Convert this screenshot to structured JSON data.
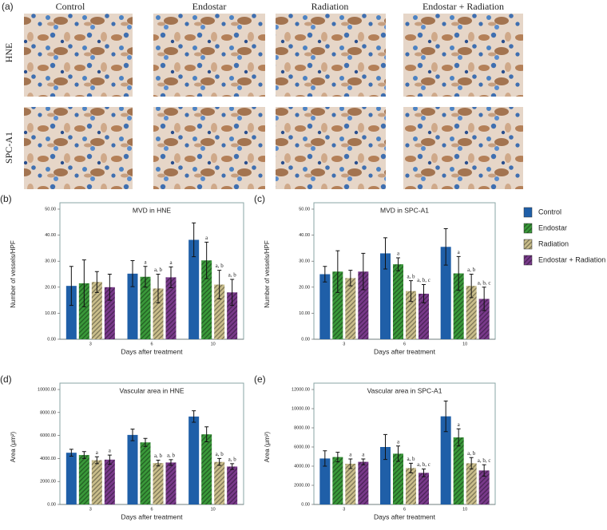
{
  "figure": {
    "panel_a": {
      "label": "(a)",
      "columns": [
        "Control",
        "Endostar",
        "Radiation",
        "Endostar + Radiation"
      ],
      "rows": [
        "HNE",
        "SPC-A1"
      ]
    }
  },
  "chart_data": [
    {
      "type": "bar",
      "panel": "(b)",
      "title": "MVD in HNE",
      "x_label": "Days after treatment",
      "y_label": "Number of vessels/HPF",
      "categories": [
        "3",
        "6",
        "10"
      ],
      "ylim": [
        0,
        50
      ],
      "yticks": [
        {
          "value": 0,
          "label": "0.00"
        },
        {
          "value": 10,
          "label": "10.00"
        },
        {
          "value": 20,
          "label": "20.00"
        },
        {
          "value": 30,
          "label": "30.00"
        },
        {
          "value": 40,
          "label": "40.00"
        },
        {
          "value": 50,
          "label": "50.00"
        }
      ],
      "series": [
        {
          "name": "Control",
          "color": "#1f5fa8",
          "hatch": false,
          "values": [
            20.5,
            25.2,
            38.2
          ],
          "errors": [
            7.5,
            5,
            6.5
          ],
          "annotations": [
            null,
            null,
            null
          ]
        },
        {
          "name": "Endostar",
          "color": "#3a9a3a",
          "hatch": true,
          "values": [
            21.5,
            24,
            30.3
          ],
          "errors": [
            9,
            4,
            7
          ],
          "annotations": [
            null,
            "a",
            "a"
          ]
        },
        {
          "name": "Radiation",
          "color": "#cbbf8c",
          "hatch": true,
          "values": [
            22,
            19.5,
            21
          ],
          "errors": [
            4,
            5.5,
            5.5
          ],
          "annotations": [
            null,
            "a, b",
            "a, b"
          ]
        },
        {
          "name": "Endostar + Radiation",
          "color": "#7a3a8c",
          "hatch": true,
          "values": [
            20,
            23.8,
            18
          ],
          "errors": [
            5,
            4,
            5
          ],
          "annotations": [
            null,
            "a",
            "a, b"
          ]
        }
      ]
    },
    {
      "type": "bar",
      "panel": "(c)",
      "title": "MVD in SPC-A1",
      "x_label": "Days after treatment",
      "y_label": "Number of vessels/HPF",
      "categories": [
        "3",
        "6",
        "10"
      ],
      "ylim": [
        0,
        50
      ],
      "yticks": [
        {
          "value": 0,
          "label": "0.00"
        },
        {
          "value": 10,
          "label": "10.00"
        },
        {
          "value": 20,
          "label": "20.00"
        },
        {
          "value": 30,
          "label": "30.00"
        },
        {
          "value": 40,
          "label": "40.00"
        },
        {
          "value": 50,
          "label": "50.00"
        }
      ],
      "series": [
        {
          "name": "Control",
          "color": "#1f5fa8",
          "hatch": false,
          "values": [
            25,
            33,
            35.5
          ],
          "errors": [
            3,
            6,
            7
          ],
          "annotations": [
            null,
            null,
            null
          ]
        },
        {
          "name": "Endostar",
          "color": "#3a9a3a",
          "hatch": true,
          "values": [
            26,
            28.8,
            25.3
          ],
          "errors": [
            8,
            2.5,
            6.5
          ],
          "annotations": [
            null,
            "a",
            "a"
          ]
        },
        {
          "name": "Radiation",
          "color": "#cbbf8c",
          "hatch": true,
          "values": [
            23.5,
            18.5,
            20.5
          ],
          "errors": [
            3,
            4,
            4.5
          ],
          "annotations": [
            null,
            "a, b",
            "a, b"
          ]
        },
        {
          "name": "Endostar + Radiation",
          "color": "#7a3a8c",
          "hatch": true,
          "values": [
            26,
            17.5,
            15.5
          ],
          "errors": [
            7,
            3.5,
            4.5
          ],
          "annotations": [
            null,
            "a, b, c",
            "a, b, c"
          ]
        }
      ]
    },
    {
      "type": "bar",
      "panel": "(d)",
      "title": "Vascular area in HNE",
      "x_label": "Days after treatment",
      "y_label": "Area (μm²)",
      "categories": [
        "3",
        "6",
        "10"
      ],
      "ylim": [
        0,
        10000
      ],
      "yticks": [
        {
          "value": 0,
          "label": "0.00"
        },
        {
          "value": 2000,
          "label": "2000.00"
        },
        {
          "value": 4000,
          "label": "4000.00"
        },
        {
          "value": 6000,
          "label": "6000.00"
        },
        {
          "value": 8000,
          "label": "8000.00"
        },
        {
          "value": 10000,
          "label": "10000.00"
        }
      ],
      "series": [
        {
          "name": "Control",
          "color": "#1f5fa8",
          "hatch": false,
          "values": [
            4500,
            6050,
            7650
          ],
          "errors": [
            300,
            500,
            500
          ],
          "annotations": [
            null,
            null,
            null
          ]
        },
        {
          "name": "Endostar",
          "color": "#3a9a3a",
          "hatch": true,
          "values": [
            4300,
            5400,
            6100
          ],
          "errors": [
            300,
            350,
            650
          ],
          "annotations": [
            null,
            null,
            null
          ]
        },
        {
          "name": "Radiation",
          "color": "#cbbf8c",
          "hatch": true,
          "values": [
            3850,
            3600,
            3700
          ],
          "errors": [
            300,
            250,
            300
          ],
          "annotations": [
            "a",
            "a, b",
            "a, b"
          ]
        },
        {
          "name": "Endostar + Radiation",
          "color": "#7a3a8c",
          "hatch": true,
          "values": [
            3900,
            3650,
            3300
          ],
          "errors": [
            400,
            250,
            250
          ],
          "annotations": [
            "a",
            "a, b",
            "a, b"
          ]
        }
      ]
    },
    {
      "type": "bar",
      "panel": "(e)",
      "title": "Vascular area in SPC-A1",
      "x_label": "Days after treatment",
      "y_label": "Area (μm²)",
      "categories": [
        "3",
        "6",
        "10"
      ],
      "ylim": [
        0,
        12000
      ],
      "yticks": [
        {
          "value": 0,
          "label": "0.00"
        },
        {
          "value": 2000,
          "label": "2000.00"
        },
        {
          "value": 4000,
          "label": "4000.00"
        },
        {
          "value": 6000,
          "label": "6000.00"
        },
        {
          "value": 8000,
          "label": "8000.00"
        },
        {
          "value": 10000,
          "label": "10000.00"
        },
        {
          "value": 12000,
          "label": "12000.00"
        }
      ],
      "series": [
        {
          "name": "Control",
          "color": "#1f5fa8",
          "hatch": false,
          "values": [
            4800,
            6000,
            9200
          ],
          "errors": [
            800,
            1300,
            1600
          ],
          "annotations": [
            null,
            null,
            null
          ]
        },
        {
          "name": "Endostar",
          "color": "#3a9a3a",
          "hatch": true,
          "values": [
            4950,
            5300,
            7000
          ],
          "errors": [
            500,
            800,
            900
          ],
          "annotations": [
            null,
            "a",
            "a"
          ]
        },
        {
          "name": "Radiation",
          "color": "#cbbf8c",
          "hatch": true,
          "values": [
            4250,
            3800,
            4300
          ],
          "errors": [
            500,
            500,
            600
          ],
          "annotations": [
            "a",
            "a, b",
            "a, b"
          ]
        },
        {
          "name": "Endostar + Radiation",
          "color": "#7a3a8c",
          "hatch": true,
          "values": [
            4450,
            3300,
            3550
          ],
          "errors": [
            300,
            400,
            600
          ],
          "annotations": [
            "a",
            "a, b, c",
            "a, b, c"
          ]
        }
      ]
    }
  ]
}
